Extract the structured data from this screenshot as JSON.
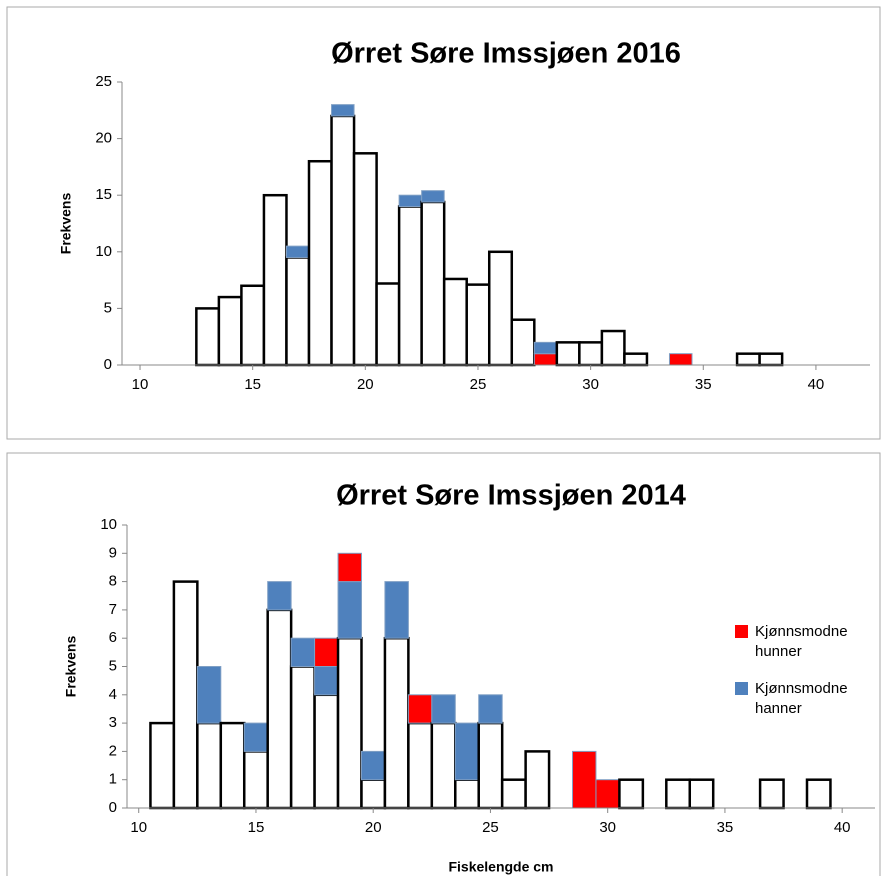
{
  "chart_data": [
    {
      "type": "bar",
      "title": "Ørret Søre Imssjøen 2016",
      "y_label": "Frekvens",
      "x": [
        13,
        14,
        15,
        16,
        17,
        18,
        19,
        20,
        21,
        22,
        23,
        24,
        25,
        26,
        27,
        28,
        29,
        30,
        31,
        32,
        33,
        34,
        35,
        36,
        37,
        38
      ],
      "series": [
        {
          "color": "#ffffff",
          "values": [
            5,
            6,
            7,
            15,
            9.5,
            18,
            22,
            18.7,
            7.2,
            14,
            14.4,
            7.6,
            7.1,
            10,
            4,
            0,
            2,
            2,
            3,
            1,
            0,
            0,
            0,
            0,
            1,
            1
          ]
        },
        {
          "color": "#ff0000",
          "values": [
            0,
            0,
            0,
            0,
            0,
            0,
            0,
            0,
            0,
            0,
            0,
            0,
            0,
            0,
            0,
            1,
            0,
            0,
            0,
            0,
            0,
            1,
            0,
            0,
            0,
            0
          ]
        },
        {
          "color": "#4f81bd",
          "values": [
            0,
            0,
            0,
            0,
            1,
            0,
            1,
            0,
            0,
            1,
            1,
            0,
            0,
            0,
            0,
            1,
            0,
            0,
            0,
            0,
            0,
            0,
            0,
            0,
            0,
            0
          ]
        }
      ],
      "xlim": [
        9.2,
        42.4
      ],
      "xticks": [
        10,
        15,
        20,
        25,
        30,
        35,
        40
      ],
      "ylim": [
        0,
        25
      ],
      "yticks": [
        0,
        5,
        10,
        15,
        20,
        25
      ],
      "grid": false
    },
    {
      "type": "bar",
      "title": "Ørret Søre Imssjøen 2014",
      "x_label": "Fiskelengde cm",
      "y_label": "Frekvens",
      "x": [
        11,
        12,
        13,
        14,
        15,
        16,
        17,
        18,
        19,
        20,
        21,
        22,
        23,
        24,
        25,
        26,
        27,
        28,
        29,
        30,
        31,
        32,
        33,
        34,
        35,
        36,
        37,
        38,
        39
      ],
      "series": [
        {
          "color": "#ffffff",
          "values": [
            3,
            8,
            3,
            3,
            2,
            7,
            5,
            4,
            6,
            1,
            6,
            3,
            3,
            1,
            3,
            1,
            2,
            0,
            0,
            0,
            1,
            0,
            1,
            1,
            0,
            0,
            1,
            0,
            1
          ]
        },
        {
          "name": "Kjønnsmodne hanner",
          "color": "#4f81bd",
          "values": [
            0,
            0,
            2,
            0,
            1,
            1,
            1,
            1,
            2,
            1,
            2,
            0,
            1,
            2,
            1,
            0,
            0,
            0,
            0,
            0,
            0,
            0,
            0,
            0,
            0,
            0,
            0,
            0,
            0
          ]
        },
        {
          "name": "Kjønnsmodne hunner",
          "color": "#ff0000",
          "values": [
            0,
            0,
            0,
            0,
            0,
            0,
            0,
            1,
            1,
            0,
            0,
            1,
            0,
            0,
            0,
            0,
            0,
            0,
            2,
            1,
            0,
            0,
            0,
            0,
            0,
            0,
            0,
            0,
            0
          ]
        }
      ],
      "legend": "right",
      "xlim": [
        9.5,
        41.4
      ],
      "xticks": [
        10,
        15,
        20,
        25,
        30,
        35,
        40
      ],
      "ylim": [
        0,
        10
      ],
      "yticks": [
        0,
        1,
        2,
        3,
        4,
        5,
        6,
        7,
        8,
        9,
        10
      ],
      "grid": false
    }
  ]
}
